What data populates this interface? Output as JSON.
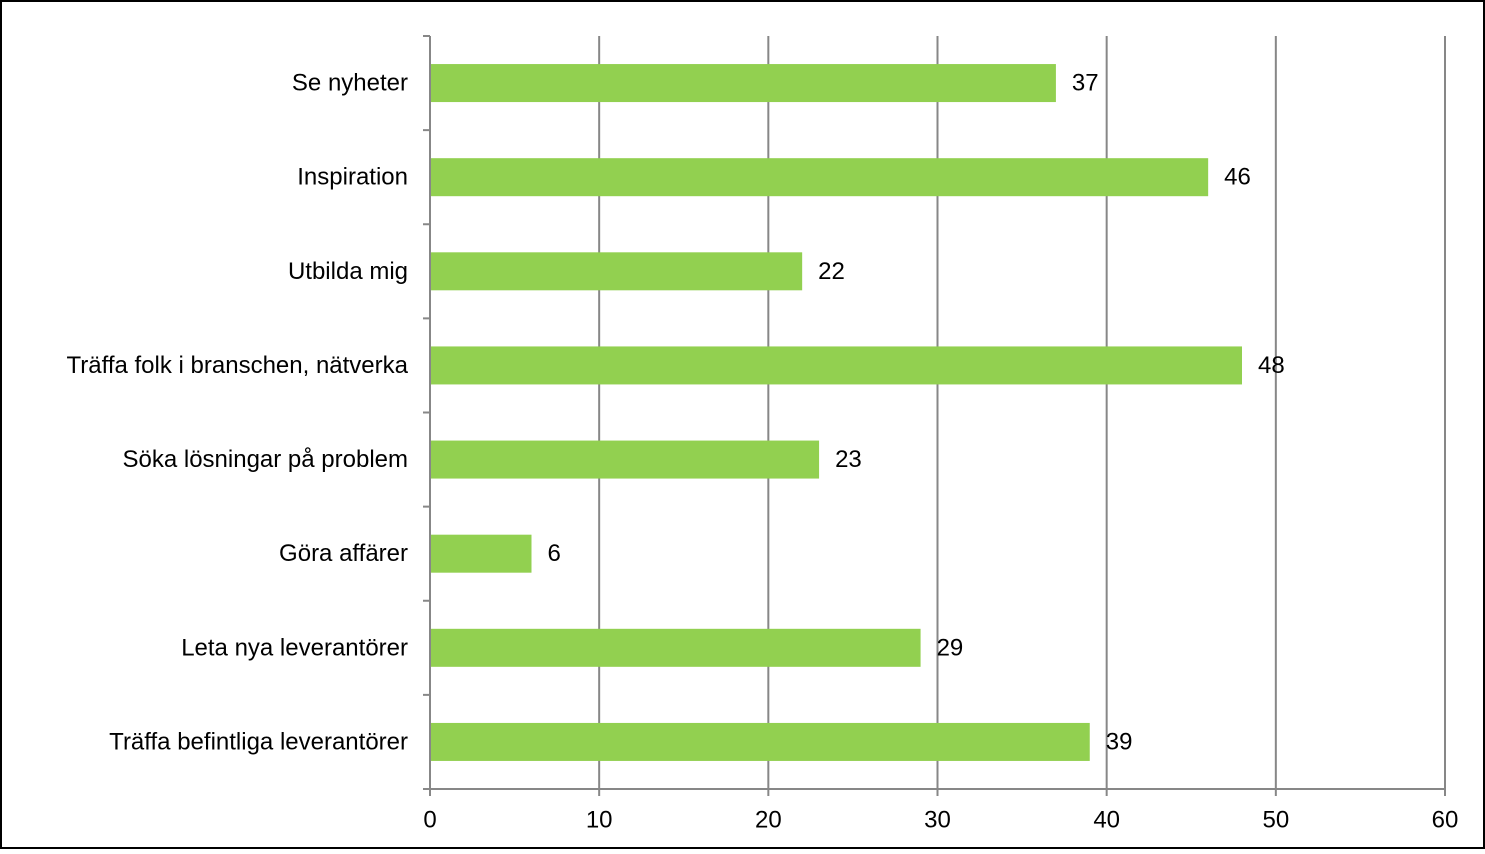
{
  "chart_data": {
    "type": "bar",
    "orientation": "horizontal",
    "categories": [
      "Se nyheter",
      "Inspiration",
      "Utbilda mig",
      "Träffa folk i branschen, nätverka",
      "Söka lösningar på problem",
      "Göra affärer",
      "Leta nya leverantörer",
      "Träffa befintliga leverantörer"
    ],
    "values": [
      37,
      46,
      22,
      48,
      23,
      6,
      29,
      39
    ],
    "data_labels": [
      "37",
      "46",
      "22",
      "48",
      "23",
      "6",
      "29",
      "39"
    ],
    "xlim": [
      0,
      60
    ],
    "x_ticks": [
      0,
      10,
      20,
      30,
      40,
      50,
      60
    ],
    "x_tick_labels": [
      "0",
      "10",
      "20",
      "30",
      "40",
      "50",
      "60"
    ],
    "grid": "vertical",
    "legend": "none",
    "bar_color": "#92D050",
    "grid_color": "#878787",
    "frame_color": "#000000"
  }
}
